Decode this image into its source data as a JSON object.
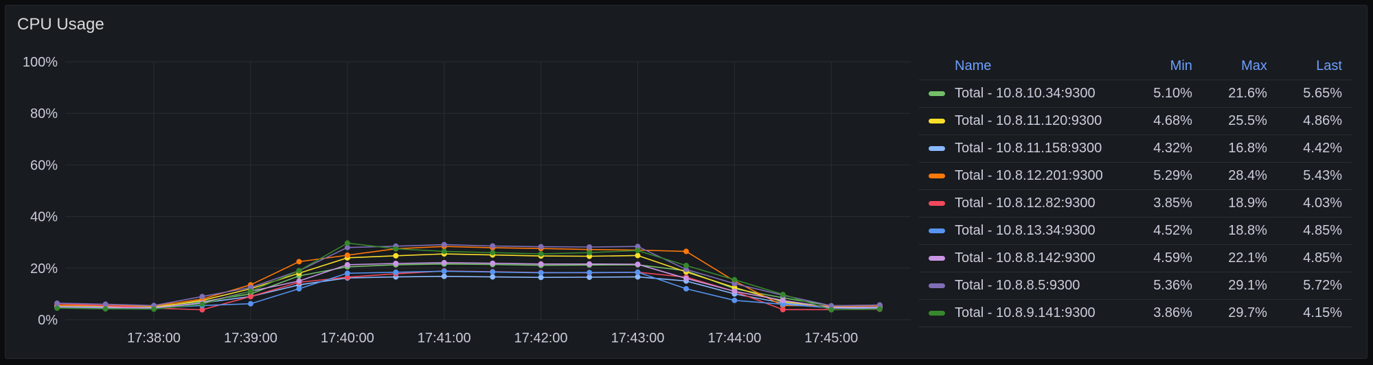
{
  "panel": {
    "title": "CPU Usage"
  },
  "legend": {
    "headers": {
      "name": "Name",
      "min": "Min",
      "max": "Max",
      "last": "Last"
    }
  },
  "chart_data": {
    "type": "line",
    "title": "CPU Usage",
    "y_axis": {
      "min": 0,
      "max": 100,
      "ticks": [
        "0%",
        "20%",
        "40%",
        "60%",
        "80%",
        "100%"
      ],
      "unit": "%"
    },
    "x_axis": {
      "ticks": [
        "17:38:00",
        "17:39:00",
        "17:40:00",
        "17:41:00",
        "17:42:00",
        "17:43:00",
        "17:44:00",
        "17:45:00"
      ],
      "range": [
        "17:37:00",
        "17:45:30"
      ]
    },
    "x": [
      "17:37:00",
      "17:37:30",
      "17:38:00",
      "17:38:30",
      "17:39:00",
      "17:39:30",
      "17:40:00",
      "17:40:30",
      "17:41:00",
      "17:41:30",
      "17:42:00",
      "17:42:30",
      "17:43:00",
      "17:43:30",
      "17:44:00",
      "17:44:30",
      "17:45:00",
      "17:45:30"
    ],
    "grid": true,
    "legend_placement": "right",
    "series": [
      {
        "name": "Total - 10.8.10.34:9300",
        "color": "#73bf69",
        "min": "5.10%",
        "max": "21.6%",
        "last": "5.65%",
        "values": [
          5.4,
          5.2,
          5.1,
          7,
          10,
          17,
          20.5,
          21.3,
          21.6,
          21.4,
          21.1,
          21.2,
          21.3,
          19,
          12,
          8.5,
          5.4,
          5.65
        ]
      },
      {
        "name": "Total - 10.8.11.120:9300",
        "color": "#fade2a",
        "min": "4.68%",
        "max": "25.5%",
        "last": "4.86%",
        "values": [
          5,
          4.9,
          4.7,
          7.5,
          12,
          18,
          24,
          24.8,
          25.5,
          25.1,
          24.7,
          24.6,
          24.9,
          18.5,
          12.5,
          7,
          4.9,
          4.86
        ]
      },
      {
        "name": "Total - 10.8.11.158:9300",
        "color": "#8ab8ff",
        "min": "4.32%",
        "max": "16.8%",
        "last": "4.42%",
        "values": [
          4.6,
          4.5,
          4.3,
          6.5,
          9,
          13.5,
          16.2,
          16.6,
          16.8,
          16.6,
          16.4,
          16.5,
          16.6,
          15,
          10,
          6.5,
          4.5,
          4.42
        ]
      },
      {
        "name": "Total - 10.8.12.201:9300",
        "color": "#ff780a",
        "min": "5.29%",
        "max": "28.4%",
        "last": "5.43%",
        "values": [
          5.6,
          5.5,
          5.3,
          8,
          13.5,
          22.5,
          25,
          27.5,
          28.4,
          27.9,
          27.6,
          27.2,
          27,
          26.5,
          15,
          5.5,
          5.3,
          5.43
        ]
      },
      {
        "name": "Total - 10.8.12.82:9300",
        "color": "#f2495c",
        "min": "3.85%",
        "max": "18.9%",
        "last": "4.03%",
        "values": [
          6.2,
          5.5,
          4.5,
          3.85,
          9,
          14.5,
          16.5,
          17.8,
          18.9,
          18.6,
          18.3,
          18.2,
          18.4,
          16.5,
          11,
          3.9,
          3.9,
          4.03
        ]
      },
      {
        "name": "Total - 10.8.13.34:9300",
        "color": "#5794f2",
        "min": "4.52%",
        "max": "18.8%",
        "last": "4.85%",
        "values": [
          4.8,
          4.7,
          4.52,
          5.5,
          6.2,
          12,
          18,
          18.4,
          18.8,
          18.5,
          18.2,
          18.3,
          18.4,
          12,
          7.5,
          6,
          4.6,
          4.85
        ]
      },
      {
        "name": "Total - 10.8.8.142:9300",
        "color": "#ca95e5",
        "min": "4.59%",
        "max": "22.1%",
        "last": "4.85%",
        "values": [
          5,
          4.8,
          4.6,
          6.5,
          11,
          15,
          21.3,
          21.8,
          22.1,
          21.9,
          21.6,
          21.6,
          21.5,
          16,
          11,
          7.5,
          4.7,
          4.85
        ]
      },
      {
        "name": "Total - 10.8.8.5:9300",
        "color": "#806eb7",
        "min": "5.36%",
        "max": "29.1%",
        "last": "5.72%",
        "values": [
          6.4,
          6,
          5.5,
          9,
          12.5,
          19,
          28,
          28.5,
          29.1,
          28.6,
          28.3,
          28.2,
          28.4,
          19.5,
          14,
          9.5,
          5.4,
          5.72
        ]
      },
      {
        "name": "Total - 10.8.9.141:9300",
        "color": "#37872d",
        "min": "3.86%",
        "max": "29.7%",
        "last": "4.15%",
        "values": [
          4.5,
          4.2,
          4.1,
          6,
          11,
          19,
          29.7,
          27.5,
          26.5,
          26,
          25.5,
          26,
          26.8,
          21,
          15.5,
          9.8,
          3.86,
          4.15
        ]
      }
    ]
  }
}
